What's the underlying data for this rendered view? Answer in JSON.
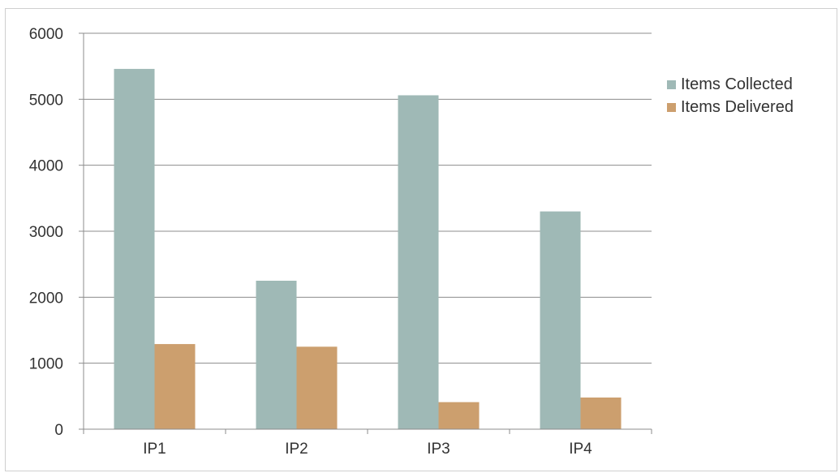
{
  "chart_data": {
    "type": "bar",
    "categories": [
      "IP1",
      "IP2",
      "IP3",
      "IP4"
    ],
    "series": [
      {
        "name": "Items Collected",
        "values": [
          5460,
          2250,
          5060,
          3300
        ],
        "color": "#9fb9b6"
      },
      {
        "name": "Items Delivered",
        "values": [
          1290,
          1250,
          410,
          480
        ],
        "color": "#cc9f6e"
      }
    ],
    "yticks": [
      0,
      1000,
      2000,
      3000,
      4000,
      5000,
      6000
    ],
    "ylim": [
      0,
      6000
    ],
    "grid": true,
    "legend": "right"
  }
}
